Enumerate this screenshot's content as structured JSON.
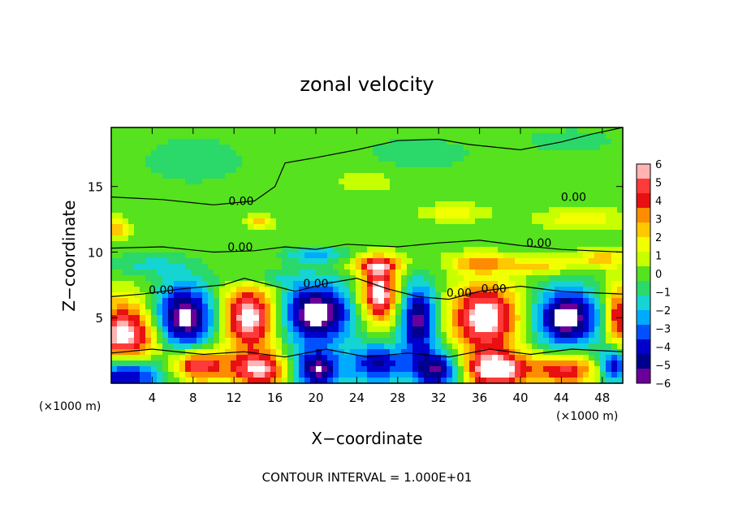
{
  "chart_data": {
    "type": "heatmap",
    "title": "zonal velocity",
    "xlabel": "X−coordinate",
    "ylabel": "Z−coordinate",
    "x_units_left": "(×1000 m)",
    "x_units_right": "(×1000 m)",
    "xlim": [
      0,
      50
    ],
    "ylim": [
      0,
      19.5
    ],
    "x_ticks": [
      4,
      8,
      12,
      16,
      20,
      24,
      28,
      32,
      36,
      40,
      44,
      48
    ],
    "y_ticks": [
      5,
      10,
      15
    ],
    "footer": "CONTOUR INTERVAL = 1.000E+01",
    "colorbar": {
      "ticks": [
        "6",
        "5",
        "4",
        "3",
        "2",
        "1",
        "0",
        "−1",
        "−2",
        "−3",
        "−4",
        "−5",
        "−6"
      ],
      "colors": [
        "#ffb3b3",
        "#ff3a3a",
        "#e81010",
        "#ff8c00",
        "#ffc800",
        "#f2ff00",
        "#c8ff00",
        "#56e21e",
        "#2bd96a",
        "#14d4d4",
        "#00aaff",
        "#0050ff",
        "#0000cc",
        "#00008c",
        "#6a0099"
      ]
    },
    "contour_labels": [
      {
        "text": "0.00",
        "x": 12.7,
        "y": 13.6
      },
      {
        "text": "0.00",
        "x": 12.6,
        "y": 10.1
      },
      {
        "text": "0.00",
        "x": 4.9,
        "y": 6.8
      },
      {
        "text": "0.00",
        "x": 20.0,
        "y": 7.3
      },
      {
        "text": "0.00",
        "x": 34.0,
        "y": 6.6
      },
      {
        "text": "0.00",
        "x": 37.4,
        "y": 6.9
      },
      {
        "text": "0.00",
        "x": 41.8,
        "y": 10.4
      },
      {
        "text": "0.00",
        "x": 45.2,
        "y": 13.9
      }
    ],
    "blobs": [
      {
        "x": 1.5,
        "y": 3.5,
        "rx": 3.5,
        "ry": 2.8,
        "v": 7
      },
      {
        "x": 7.0,
        "y": 5.0,
        "rx": 3.2,
        "ry": 2.5,
        "v": -7
      },
      {
        "x": 13.5,
        "y": 5.0,
        "rx": 2.8,
        "ry": 2.5,
        "v": 7
      },
      {
        "x": 20.0,
        "y": 5.3,
        "rx": 3.5,
        "ry": 2.3,
        "v": -7
      },
      {
        "x": 26.2,
        "y": 6.8,
        "rx": 1.8,
        "ry": 2.2,
        "v": 7
      },
      {
        "x": 30.0,
        "y": 4.8,
        "rx": 1.8,
        "ry": 2.8,
        "v": -6
      },
      {
        "x": 36.5,
        "y": 5.0,
        "rx": 3.3,
        "ry": 2.6,
        "v": 7
      },
      {
        "x": 44.5,
        "y": 5.0,
        "rx": 3.0,
        "ry": 2.2,
        "v": -7
      },
      {
        "x": 49.5,
        "y": 5.0,
        "rx": 1.2,
        "ry": 2.5,
        "v": 5
      },
      {
        "x": 1.5,
        "y": 0.7,
        "rx": 3.5,
        "ry": 1.6,
        "v": -7
      },
      {
        "x": 8.5,
        "y": 1.4,
        "rx": 2.5,
        "ry": 1.2,
        "v": 6
      },
      {
        "x": 14.5,
        "y": 1.0,
        "rx": 3.0,
        "ry": 1.3,
        "v": 6
      },
      {
        "x": 20.0,
        "y": 1.0,
        "rx": 2.5,
        "ry": 1.5,
        "v": -6
      },
      {
        "x": 26.0,
        "y": 1.5,
        "rx": 2.5,
        "ry": 1.5,
        "v": -5
      },
      {
        "x": 32.0,
        "y": 1.0,
        "rx": 2.5,
        "ry": 1.5,
        "v": -6
      },
      {
        "x": 37.5,
        "y": 1.0,
        "rx": 3.5,
        "ry": 1.4,
        "v": 7
      },
      {
        "x": 44.5,
        "y": 1.0,
        "rx": 3.0,
        "ry": 1.2,
        "v": 5
      },
      {
        "x": 49.2,
        "y": 1.4,
        "rx": 1.5,
        "ry": 1.4,
        "v": -5
      },
      {
        "x": 3.5,
        "y": 9.0,
        "rx": 4.0,
        "ry": 0.8,
        "v": -1.5
      },
      {
        "x": 15.0,
        "y": 8.0,
        "rx": 4.0,
        "ry": 0.7,
        "v": -1.5
      },
      {
        "x": 20.0,
        "y": 9.8,
        "rx": 3.0,
        "ry": 0.6,
        "v": -2.5
      },
      {
        "x": 26.0,
        "y": 9.0,
        "rx": 2.5,
        "ry": 0.7,
        "v": 4
      },
      {
        "x": 36.0,
        "y": 9.2,
        "rx": 3.0,
        "ry": 0.7,
        "v": 3
      },
      {
        "x": 42.0,
        "y": 9.0,
        "rx": 3.5,
        "ry": 0.7,
        "v": 2.5
      },
      {
        "x": 48.0,
        "y": 9.5,
        "rx": 2.5,
        "ry": 0.7,
        "v": 2.5
      },
      {
        "x": 0.7,
        "y": 11.8,
        "rx": 1.0,
        "ry": 0.8,
        "v": 3
      },
      {
        "x": 14.5,
        "y": 12.3,
        "rx": 1.2,
        "ry": 0.5,
        "v": 3
      },
      {
        "x": 33.5,
        "y": 13.0,
        "rx": 3.0,
        "ry": 0.6,
        "v": 2
      },
      {
        "x": 46.0,
        "y": 12.5,
        "rx": 4.0,
        "ry": 0.8,
        "v": 2
      },
      {
        "x": 8.0,
        "y": 17.0,
        "rx": 5.0,
        "ry": 1.8,
        "v": -1
      },
      {
        "x": 30.0,
        "y": 17.5,
        "rx": 6.0,
        "ry": 1.5,
        "v": -0.8
      },
      {
        "x": 45.0,
        "y": 18.5,
        "rx": 5.0,
        "ry": 1.0,
        "v": -0.8
      },
      {
        "x": 25.0,
        "y": 15.5,
        "rx": 3.0,
        "ry": 1.0,
        "v": 1
      }
    ]
  }
}
